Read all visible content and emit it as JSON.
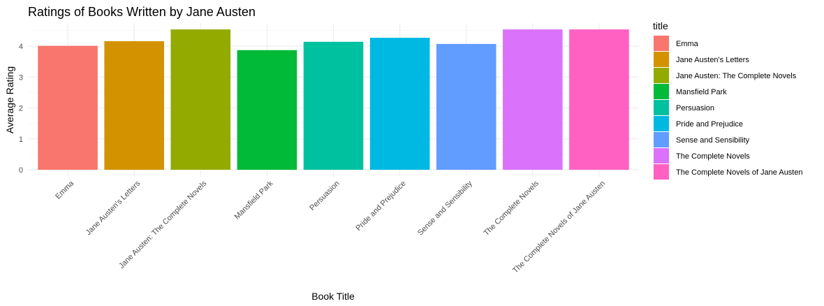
{
  "chart_data": {
    "type": "bar",
    "title": "Ratings of Books Written by Jane Austen",
    "xlabel": "Book Title",
    "ylabel": "Average Rating",
    "ylim": [
      0,
      4.55
    ],
    "yticks": [
      0,
      1,
      2,
      3,
      4
    ],
    "grid": true,
    "legend_position": "right",
    "legend_title": "title",
    "categories": [
      "Emma",
      "Jane Austen's Letters",
      "Jane Austen: The Complete Novels",
      "Mansfield Park",
      "Persuasion",
      "Pride and Prejudice",
      "Sense and Sensibility",
      "The Complete Novels",
      "The Complete Novels of Jane Austen"
    ],
    "values": [
      4.01,
      4.16,
      4.54,
      3.87,
      4.14,
      4.27,
      4.07,
      4.54,
      4.54
    ],
    "colors": [
      "#F8766D",
      "#D39200",
      "#93AA00",
      "#00BA38",
      "#00C19F",
      "#00B9E3",
      "#619CFF",
      "#DB72FB",
      "#FF61C3"
    ]
  }
}
